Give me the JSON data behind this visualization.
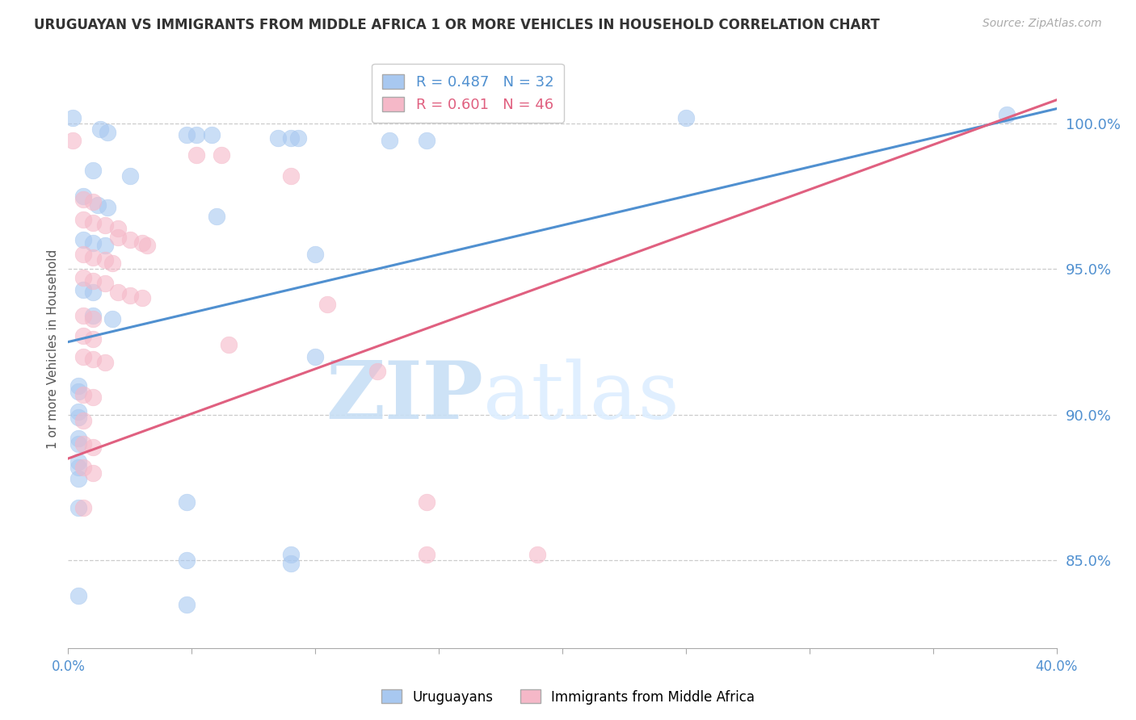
{
  "title": "URUGUAYAN VS IMMIGRANTS FROM MIDDLE AFRICA 1 OR MORE VEHICLES IN HOUSEHOLD CORRELATION CHART",
  "source": "Source: ZipAtlas.com",
  "ylabel": "1 or more Vehicles in Household",
  "x_min": 0.0,
  "x_max": 0.4,
  "y_min": 82.0,
  "y_max": 102.5,
  "y_ticks": [
    85.0,
    90.0,
    95.0,
    100.0
  ],
  "y_tick_labels": [
    "85.0%",
    "90.0%",
    "95.0%",
    "100.0%"
  ],
  "blue_color": "#a8c8f0",
  "pink_color": "#f5b8c8",
  "blue_line_color": "#5090d0",
  "pink_line_color": "#e06080",
  "legend_label_blue": "Uruguayans",
  "legend_label_pink": "Immigrants from Middle Africa",
  "watermark_zip": "ZIP",
  "watermark_atlas": "atlas",
  "blue_scatter": [
    [
      0.002,
      100.2
    ],
    [
      0.013,
      99.8
    ],
    [
      0.016,
      99.7
    ],
    [
      0.048,
      99.6
    ],
    [
      0.052,
      99.6
    ],
    [
      0.058,
      99.6
    ],
    [
      0.085,
      99.5
    ],
    [
      0.09,
      99.5
    ],
    [
      0.093,
      99.5
    ],
    [
      0.13,
      99.4
    ],
    [
      0.145,
      99.4
    ],
    [
      0.01,
      98.4
    ],
    [
      0.025,
      98.2
    ],
    [
      0.006,
      97.5
    ],
    [
      0.012,
      97.2
    ],
    [
      0.016,
      97.1
    ],
    [
      0.06,
      96.8
    ],
    [
      0.006,
      96.0
    ],
    [
      0.01,
      95.9
    ],
    [
      0.015,
      95.8
    ],
    [
      0.1,
      95.5
    ],
    [
      0.006,
      94.3
    ],
    [
      0.01,
      94.2
    ],
    [
      0.01,
      93.4
    ],
    [
      0.018,
      93.3
    ],
    [
      0.1,
      92.0
    ],
    [
      0.004,
      91.0
    ],
    [
      0.004,
      90.8
    ],
    [
      0.004,
      90.1
    ],
    [
      0.004,
      89.9
    ],
    [
      0.004,
      89.2
    ],
    [
      0.004,
      89.0
    ],
    [
      0.004,
      88.4
    ],
    [
      0.004,
      88.2
    ],
    [
      0.004,
      87.8
    ],
    [
      0.048,
      87.0
    ],
    [
      0.004,
      86.8
    ],
    [
      0.09,
      85.2
    ],
    [
      0.048,
      85.0
    ],
    [
      0.09,
      84.9
    ],
    [
      0.004,
      83.8
    ],
    [
      0.048,
      83.5
    ],
    [
      0.25,
      100.2
    ],
    [
      0.38,
      100.3
    ]
  ],
  "pink_scatter": [
    [
      0.002,
      99.4
    ],
    [
      0.052,
      98.9
    ],
    [
      0.062,
      98.9
    ],
    [
      0.09,
      98.2
    ],
    [
      0.006,
      97.4
    ],
    [
      0.01,
      97.3
    ],
    [
      0.006,
      96.7
    ],
    [
      0.01,
      96.6
    ],
    [
      0.015,
      96.5
    ],
    [
      0.02,
      96.4
    ],
    [
      0.02,
      96.1
    ],
    [
      0.025,
      96.0
    ],
    [
      0.03,
      95.9
    ],
    [
      0.032,
      95.8
    ],
    [
      0.006,
      95.5
    ],
    [
      0.01,
      95.4
    ],
    [
      0.015,
      95.3
    ],
    [
      0.018,
      95.2
    ],
    [
      0.006,
      94.7
    ],
    [
      0.01,
      94.6
    ],
    [
      0.015,
      94.5
    ],
    [
      0.02,
      94.2
    ],
    [
      0.025,
      94.1
    ],
    [
      0.03,
      94.0
    ],
    [
      0.105,
      93.8
    ],
    [
      0.006,
      93.4
    ],
    [
      0.01,
      93.3
    ],
    [
      0.006,
      92.7
    ],
    [
      0.01,
      92.6
    ],
    [
      0.065,
      92.4
    ],
    [
      0.006,
      92.0
    ],
    [
      0.01,
      91.9
    ],
    [
      0.015,
      91.8
    ],
    [
      0.125,
      91.5
    ],
    [
      0.006,
      90.7
    ],
    [
      0.01,
      90.6
    ],
    [
      0.006,
      89.8
    ],
    [
      0.006,
      89.0
    ],
    [
      0.01,
      88.9
    ],
    [
      0.006,
      88.2
    ],
    [
      0.01,
      88.0
    ],
    [
      0.145,
      87.0
    ],
    [
      0.006,
      86.8
    ],
    [
      0.145,
      85.2
    ],
    [
      0.19,
      85.2
    ]
  ],
  "blue_line": [
    [
      0.0,
      92.5
    ],
    [
      0.4,
      100.5
    ]
  ],
  "pink_line": [
    [
      0.0,
      88.5
    ],
    [
      0.4,
      100.8
    ]
  ]
}
